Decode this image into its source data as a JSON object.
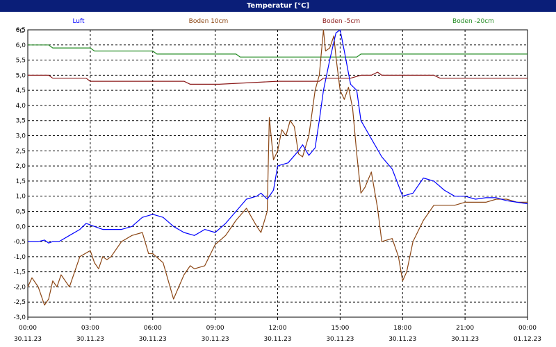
{
  "chart_data": {
    "type": "line",
    "title": "Temperatur [°C]",
    "ylabel": "°C",
    "ylim": [
      -3.0,
      6.5
    ],
    "yticks": [
      "6,5",
      "6,0",
      "5,5",
      "5,0",
      "4,5",
      "4,0",
      "3,5",
      "3,0",
      "2,5",
      "2,0",
      "1,5",
      "1,0",
      "0,5",
      "0,0",
      "-0,5",
      "-1,0",
      "-1,5",
      "-2,0",
      "-2,5",
      "-3,0"
    ],
    "xlim": [
      0,
      24
    ],
    "xticks": [
      {
        "time": "00:00",
        "date": "30.11.23"
      },
      {
        "time": "03:00",
        "date": "30.11.23"
      },
      {
        "time": "06:00",
        "date": "30.11.23"
      },
      {
        "time": "09:00",
        "date": "30.11.23"
      },
      {
        "time": "12:00",
        "date": "30.11.23"
      },
      {
        "time": "15:00",
        "date": "30.11.23"
      },
      {
        "time": "18:00",
        "date": "30.11.23"
      },
      {
        "time": "21:00",
        "date": "30.11.23"
      },
      {
        "time": "00:00",
        "date": "01.12.23"
      }
    ],
    "grid": true,
    "legend_position": "top",
    "series": [
      {
        "name": "Luft",
        "color": "#0000ff",
        "x": [
          0,
          0.5,
          0.8,
          1.0,
          1.2,
          1.5,
          2.0,
          2.5,
          2.8,
          3.2,
          3.6,
          4.0,
          4.5,
          5.0,
          5.5,
          6.0,
          6.5,
          7.0,
          7.5,
          8.0,
          8.5,
          9.0,
          9.5,
          10.0,
          10.5,
          11.0,
          11.2,
          11.5,
          11.8,
          12.0,
          12.5,
          13.0,
          13.2,
          13.5,
          13.8,
          14.0,
          14.2,
          14.5,
          14.8,
          15.0,
          15.2,
          15.5,
          15.8,
          16.0,
          16.5,
          17.0,
          17.5,
          18.0,
          18.5,
          19.0,
          19.5,
          20.0,
          20.5,
          21.0,
          21.5,
          22.0,
          22.5,
          23.0,
          23.5,
          24.0
        ],
        "y": [
          -0.5,
          -0.5,
          -0.45,
          -0.55,
          -0.5,
          -0.5,
          -0.3,
          -0.1,
          0.1,
          0.0,
          -0.1,
          -0.1,
          -0.1,
          0.0,
          0.3,
          0.4,
          0.3,
          0.0,
          -0.2,
          -0.3,
          -0.1,
          -0.2,
          0.1,
          0.5,
          0.9,
          1.0,
          1.1,
          0.9,
          1.2,
          2.0,
          2.1,
          2.5,
          2.7,
          2.35,
          2.6,
          3.5,
          4.5,
          5.5,
          6.4,
          6.5,
          5.8,
          4.7,
          4.5,
          3.5,
          2.9,
          2.3,
          1.9,
          1.0,
          1.1,
          1.6,
          1.5,
          1.2,
          1.0,
          1.0,
          0.9,
          0.95,
          0.95,
          0.85,
          0.8,
          0.75
        ]
      },
      {
        "name": "Boden 10cm",
        "color": "#8b4513",
        "x": [
          0,
          0.2,
          0.5,
          0.8,
          1.0,
          1.2,
          1.4,
          1.6,
          1.8,
          2.0,
          2.2,
          2.5,
          3.0,
          3.2,
          3.4,
          3.6,
          3.8,
          4.0,
          4.5,
          5.0,
          5.5,
          5.8,
          6.0,
          6.5,
          7.0,
          7.5,
          7.8,
          8.0,
          8.5,
          9.0,
          9.5,
          10.0,
          10.5,
          11.0,
          11.2,
          11.5,
          11.6,
          11.8,
          12.0,
          12.2,
          12.4,
          12.6,
          12.8,
          13.0,
          13.2,
          13.5,
          13.8,
          14.0,
          14.2,
          14.3,
          14.5,
          14.7,
          14.8,
          15.0,
          15.2,
          15.4,
          15.6,
          15.8,
          16.0,
          16.2,
          16.5,
          16.8,
          17.0,
          17.5,
          17.8,
          18.0,
          18.2,
          18.5,
          19.0,
          19.5,
          20.0,
          20.5,
          21.0,
          21.5,
          22.0,
          22.5,
          23.0,
          23.5,
          24.0
        ],
        "y": [
          -2.0,
          -1.7,
          -2.0,
          -2.6,
          -2.4,
          -1.8,
          -2.0,
          -1.6,
          -1.8,
          -2.0,
          -1.6,
          -1.0,
          -0.8,
          -1.2,
          -1.4,
          -1.0,
          -1.1,
          -1.0,
          -0.5,
          -0.3,
          -0.2,
          -0.9,
          -0.9,
          -1.2,
          -2.4,
          -1.6,
          -1.3,
          -1.4,
          -1.3,
          -0.6,
          -0.3,
          0.2,
          0.6,
          0.0,
          -0.2,
          0.5,
          3.6,
          2.2,
          2.5,
          3.2,
          3.0,
          3.5,
          3.3,
          2.4,
          2.3,
          3.0,
          4.5,
          5.0,
          6.5,
          5.8,
          5.9,
          6.3,
          5.6,
          4.5,
          4.2,
          4.6,
          3.9,
          2.4,
          1.1,
          1.3,
          1.8,
          0.6,
          -0.5,
          -0.4,
          -1.0,
          -1.8,
          -1.5,
          -0.5,
          0.2,
          0.7,
          0.7,
          0.7,
          0.8,
          0.8,
          0.8,
          0.9,
          0.9,
          0.8,
          0.8
        ]
      },
      {
        "name": "Boden -5cm",
        "color": "#8b1a1a",
        "x": [
          0,
          1.0,
          1.2,
          2.8,
          3.0,
          6.2,
          6.5,
          7.5,
          7.8,
          9.0,
          9.2,
          12.0,
          12.2,
          14.0,
          14.2,
          15.5,
          16.0,
          16.5,
          16.8,
          17.0,
          19.5,
          19.8,
          24.0
        ],
        "y": [
          5.0,
          5.0,
          4.9,
          4.9,
          4.8,
          4.8,
          4.8,
          4.8,
          4.7,
          4.7,
          4.7,
          4.8,
          4.8,
          4.8,
          4.9,
          4.9,
          5.0,
          5.0,
          5.1,
          5.0,
          5.0,
          4.9,
          4.9
        ]
      },
      {
        "name": "Boden -20cm",
        "color": "#228b22",
        "x": [
          0,
          1.0,
          1.2,
          3.0,
          3.2,
          6.0,
          6.2,
          10.0,
          10.2,
          15.8,
          16.0,
          24.0
        ],
        "y": [
          6.0,
          6.0,
          5.9,
          5.9,
          5.8,
          5.8,
          5.7,
          5.7,
          5.6,
          5.6,
          5.7,
          5.7
        ]
      }
    ]
  }
}
